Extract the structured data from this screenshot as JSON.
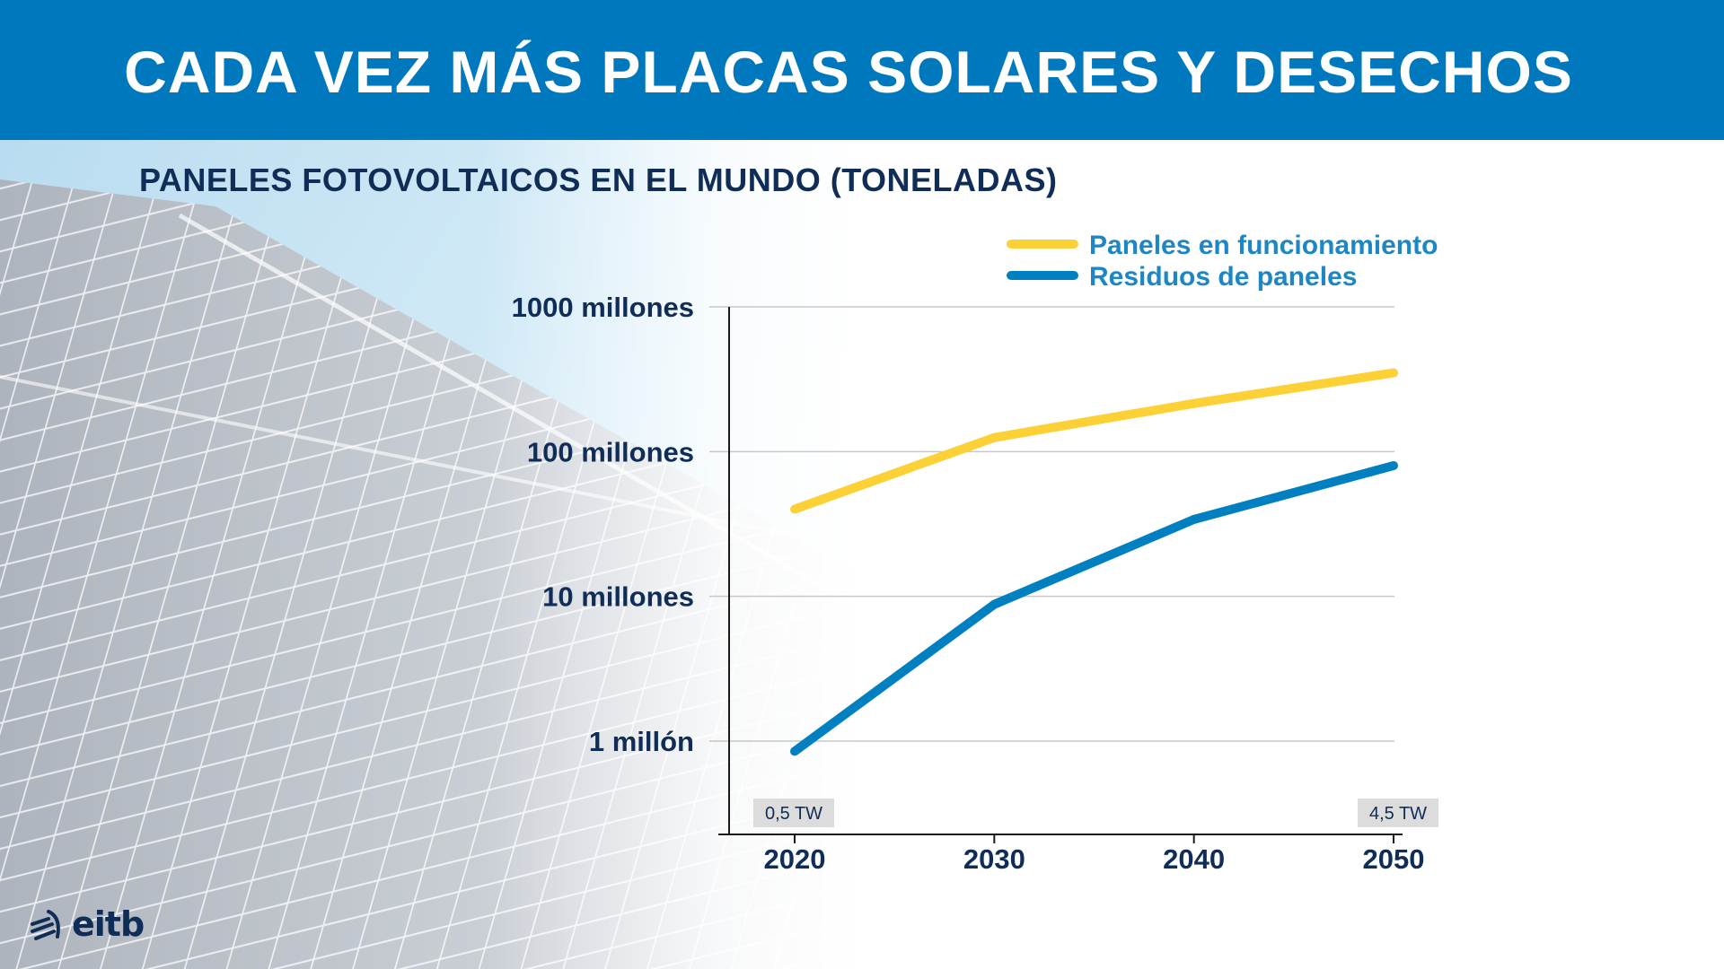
{
  "header": {
    "title": "CADA VEZ MÁS PLACAS SOLARES Y DESECHOS"
  },
  "subtitle": "PANELES FOTOVOLTAICOS EN EL MUNDO (TONELADAS)",
  "logo": {
    "text": "eitb"
  },
  "colors": {
    "header_bg": "#0078bd",
    "series_operating": "#fbd136",
    "series_waste": "#0080c0",
    "legend_text": "#1d86c4",
    "axis_text": "#0f2d57",
    "gridline": "#c8c8c8",
    "tag_bg": "#dcdcdc"
  },
  "chart_data": {
    "type": "line",
    "title": "PANELES FOTOVOLTAICOS EN EL MUNDO (TONELADAS)",
    "x": [
      2020,
      2030,
      2040,
      2050
    ],
    "y_scale": "log",
    "ylim": [
      300000,
      1000000000
    ],
    "y_ticks": [
      1000000,
      10000000,
      100000000,
      1000000000
    ],
    "y_tick_labels": [
      "1 millón",
      "10 millones",
      "100 millones",
      "1000 millones"
    ],
    "x_tick_labels": [
      "2020",
      "2030",
      "2040",
      "2050"
    ],
    "grid": true,
    "legend_position": "top-right",
    "series": [
      {
        "name": "Paneles en funcionamiento",
        "color": "#fbd136",
        "values": [
          40000000,
          125000000,
          215000000,
          350000000
        ]
      },
      {
        "name": "Residuos de paneles",
        "color": "#0080c0",
        "values": [
          850000,
          8800000,
          34000000,
          80000000
        ]
      }
    ],
    "annotations": [
      {
        "text": "0,5 TW",
        "x": 2020
      },
      {
        "text": "4,5 TW",
        "x": 2050
      }
    ]
  }
}
